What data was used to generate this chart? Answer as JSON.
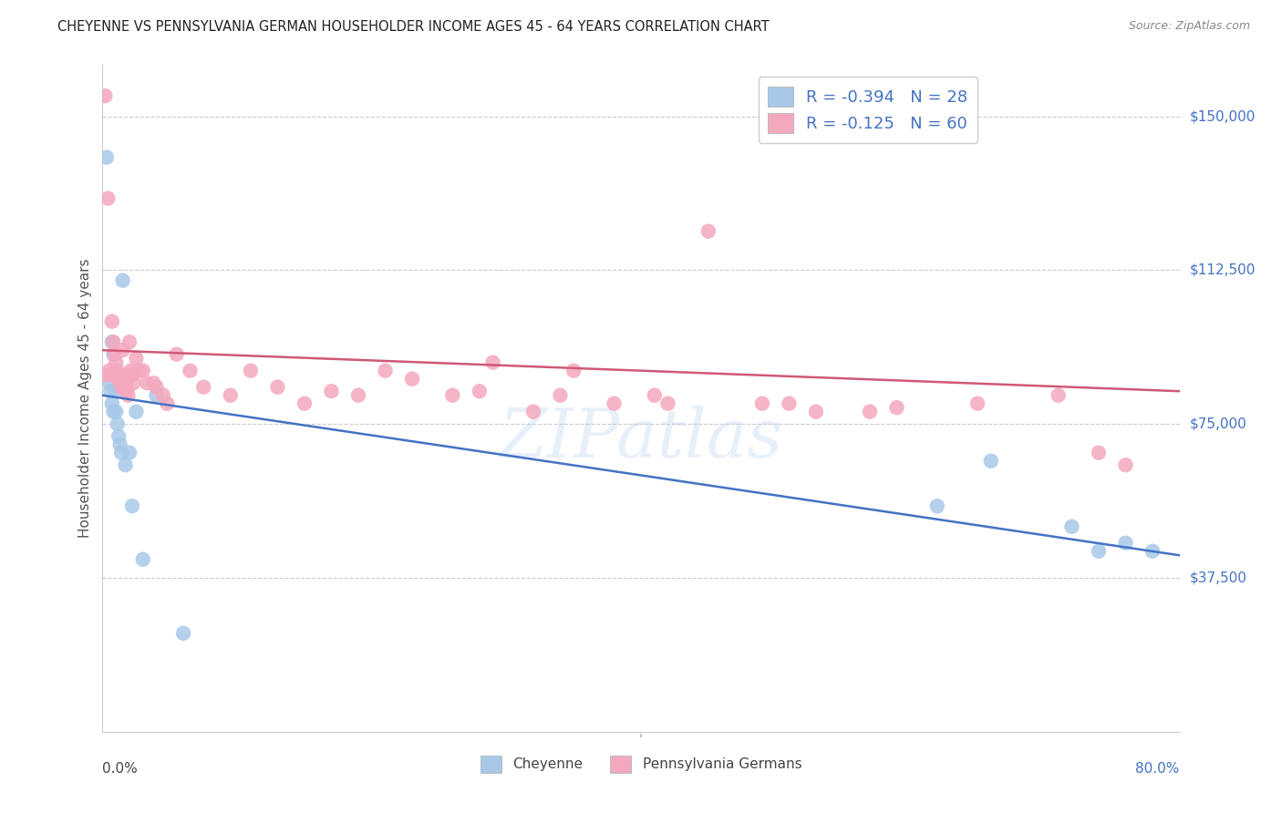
{
  "title": "CHEYENNE VS PENNSYLVANIA GERMAN HOUSEHOLDER INCOME AGES 45 - 64 YEARS CORRELATION CHART",
  "source": "Source: ZipAtlas.com",
  "ylabel": "Householder Income Ages 45 - 64 years",
  "ytick_labels": [
    "$37,500",
    "$75,000",
    "$112,500",
    "$150,000"
  ],
  "ytick_values": [
    37500,
    75000,
    112500,
    150000
  ],
  "ymin": 0,
  "ymax": 162500,
  "xmin": 0.0,
  "xmax": 0.8,
  "cheyenne_color": "#a8c8e8",
  "penn_color": "#f4a8be",
  "cheyenne_line_color": "#4472c4",
  "penn_line_color": "#d05878",
  "watermark": "ZIPatlas",
  "legend_label1": "Cheyenne",
  "legend_label2": "Pennsylvania Germans",
  "cheyenne_x": [
    0.003,
    0.005,
    0.006,
    0.007,
    0.007,
    0.008,
    0.008,
    0.009,
    0.01,
    0.01,
    0.011,
    0.012,
    0.013,
    0.014,
    0.015,
    0.017,
    0.02,
    0.022,
    0.025,
    0.03,
    0.04,
    0.06,
    0.62,
    0.66,
    0.72,
    0.74,
    0.76,
    0.78
  ],
  "cheyenne_y": [
    140000,
    85000,
    83000,
    80000,
    95000,
    78000,
    92000,
    87000,
    83000,
    78000,
    75000,
    72000,
    70000,
    68000,
    110000,
    65000,
    68000,
    55000,
    78000,
    42000,
    82000,
    24000,
    55000,
    66000,
    50000,
    44000,
    46000,
    44000
  ],
  "penn_x": [
    0.002,
    0.003,
    0.004,
    0.005,
    0.006,
    0.007,
    0.008,
    0.009,
    0.01,
    0.011,
    0.012,
    0.013,
    0.014,
    0.015,
    0.016,
    0.017,
    0.018,
    0.019,
    0.02,
    0.021,
    0.022,
    0.023,
    0.025,
    0.027,
    0.03,
    0.033,
    0.038,
    0.04,
    0.045,
    0.048,
    0.055,
    0.065,
    0.075,
    0.095,
    0.11,
    0.13,
    0.15,
    0.17,
    0.19,
    0.21,
    0.23,
    0.26,
    0.29,
    0.32,
    0.35,
    0.38,
    0.41,
    0.45,
    0.49,
    0.53,
    0.57,
    0.42,
    0.28,
    0.34,
    0.51,
    0.59,
    0.65,
    0.71,
    0.74,
    0.76
  ],
  "penn_y": [
    155000,
    87000,
    130000,
    88000,
    87000,
    100000,
    95000,
    92000,
    90000,
    88000,
    86000,
    85000,
    84000,
    93000,
    87000,
    85000,
    83000,
    82000,
    95000,
    88000,
    87000,
    85000,
    91000,
    88000,
    88000,
    85000,
    85000,
    84000,
    82000,
    80000,
    92000,
    88000,
    84000,
    82000,
    88000,
    84000,
    80000,
    83000,
    82000,
    88000,
    86000,
    82000,
    90000,
    78000,
    88000,
    80000,
    82000,
    122000,
    80000,
    78000,
    78000,
    80000,
    83000,
    82000,
    80000,
    79000,
    80000,
    82000,
    68000,
    65000
  ]
}
